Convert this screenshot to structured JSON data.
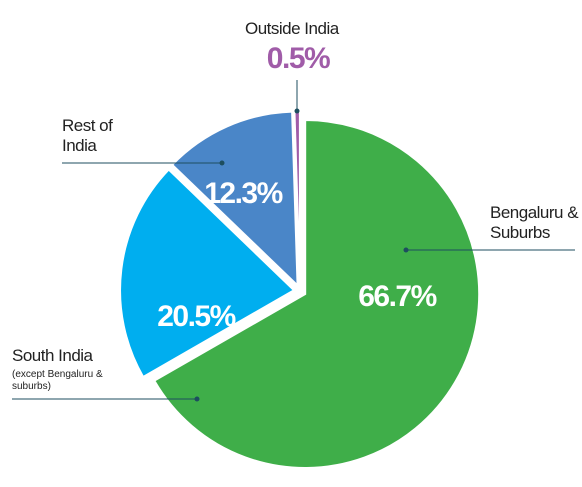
{
  "chart_data": {
    "type": "pie",
    "categories": [
      "Bengaluru & Suburbs",
      "South India",
      "Rest of India",
      "Outside India"
    ],
    "category_notes": [
      null,
      "(except Bengaluru & suburbs)",
      null,
      null
    ],
    "values": [
      66.7,
      20.5,
      12.3,
      0.5
    ],
    "value_labels": [
      "66.7%",
      "20.5%",
      "12.3%",
      "0.5%"
    ],
    "colors": [
      "#3fae49",
      "#00aeef",
      "#4a86c8",
      "#a05ca8"
    ]
  }
}
